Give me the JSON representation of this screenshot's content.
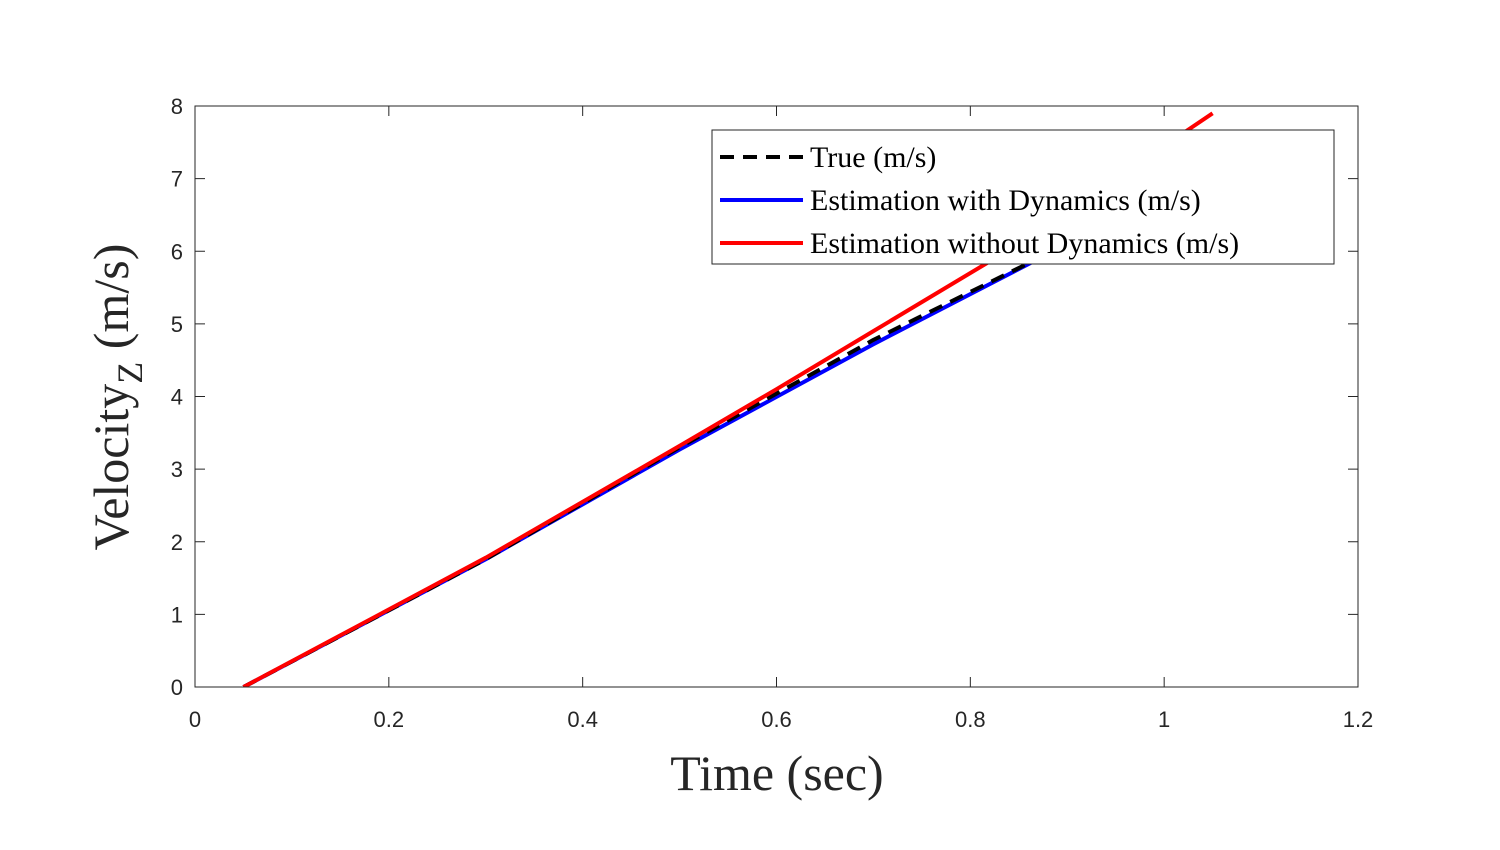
{
  "chart_data": {
    "type": "line",
    "xlabel": "Time (sec)",
    "ylabel": {
      "main": "Velocity",
      "subscript": "Z",
      "unit": " (m/s)"
    },
    "xlim": [
      0,
      1.2
    ],
    "ylim": [
      0,
      8
    ],
    "xticks": [
      0,
      0.2,
      0.4,
      0.6,
      0.8,
      1,
      1.2
    ],
    "yticks": [
      0,
      1,
      2,
      3,
      4,
      5,
      6,
      7,
      8
    ],
    "xtick_labels": [
      "0",
      "0.2",
      "0.4",
      "0.6",
      "0.8",
      "1",
      "1.2"
    ],
    "ytick_labels": [
      "0",
      "1",
      "2",
      "3",
      "4",
      "5",
      "6",
      "7",
      "8"
    ],
    "grid": false,
    "legend_position": "top-right",
    "series": [
      {
        "name": "True (m/s)",
        "color": "#000000",
        "style": "dashed",
        "x": [
          0.05,
          0.3,
          0.5,
          0.7,
          0.9
        ],
        "y": [
          0.0,
          1.76,
          3.3,
          4.78,
          6.1
        ]
      },
      {
        "name": "Estimation with Dynamics (m/s)",
        "color": "#0000ff",
        "style": "solid",
        "x": [
          0.05,
          0.3,
          0.5,
          0.7,
          0.9
        ],
        "y": [
          0.0,
          1.76,
          3.27,
          4.72,
          6.1
        ]
      },
      {
        "name": "Estimation without Dynamics (m/s)",
        "color": "#ff0000",
        "style": "solid",
        "x": [
          0.05,
          0.3,
          0.5,
          0.6,
          0.7,
          0.85,
          1.05
        ],
        "y": [
          0.0,
          1.78,
          3.32,
          4.1,
          4.9,
          6.1,
          7.9
        ]
      }
    ]
  }
}
